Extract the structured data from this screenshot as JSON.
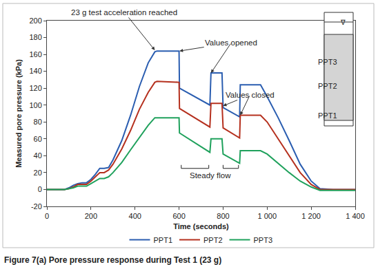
{
  "chart_data": {
    "type": "line",
    "title": "Figure 7(a) Pore pressure response during Test 1 (23 g)",
    "x_label": "Time (seconds)",
    "y_label": "Measured pore pressure (kPa)",
    "x": [
      0,
      80,
      100,
      120,
      140,
      160,
      180,
      200,
      220,
      240,
      260,
      280,
      300,
      340,
      380,
      420,
      460,
      490,
      500,
      600,
      602,
      740,
      745,
      795,
      800,
      875,
      878,
      970,
      1000,
      1050,
      1100,
      1150,
      1200,
      1240,
      1300,
      1400
    ],
    "series": [
      {
        "name": "PPT1",
        "color": "#2a5db0",
        "values": [
          0,
          0,
          2,
          5,
          7,
          8,
          8,
          12,
          18,
          25,
          25,
          26,
          35,
          58,
          88,
          122,
          150,
          163,
          164,
          164,
          120,
          100,
          138,
          138,
          97,
          86,
          124,
          124,
          110,
          85,
          58,
          30,
          10,
          1,
          0,
          0
        ]
      },
      {
        "name": "PPT2",
        "color": "#b5301e",
        "values": [
          0,
          0,
          1,
          3,
          6,
          6,
          6,
          10,
          15,
          20,
          20,
          23,
          30,
          48,
          70,
          95,
          115,
          127,
          128,
          127,
          96,
          74,
          102,
          102,
          73,
          61,
          88,
          88,
          80,
          60,
          40,
          20,
          6,
          0,
          0,
          0
        ]
      },
      {
        "name": "PPT3",
        "color": "#1fa15c",
        "values": [
          0,
          0,
          1,
          2,
          4,
          4,
          4,
          7,
          10,
          13,
          13,
          15,
          20,
          32,
          47,
          62,
          76,
          85,
          85,
          85,
          67,
          44,
          60,
          60,
          42,
          31,
          46,
          46,
          42,
          31,
          20,
          10,
          3,
          -1,
          -1,
          -1
        ]
      }
    ],
    "xlim": [
      0,
      1400
    ],
    "xticks": [
      0,
      200,
      400,
      600,
      800,
      {
        "value": 1000,
        "label": "1 000"
      },
      {
        "value": 1200,
        "label": "1 200"
      },
      {
        "value": 1400,
        "label": "1 400"
      }
    ],
    "ylim": [
      -20,
      200
    ],
    "yticks": [
      -20,
      0,
      20,
      40,
      60,
      80,
      100,
      120,
      140,
      160,
      180,
      200
    ],
    "grid": false,
    "legend": "bottom",
    "annotations": [
      {
        "text": "23 g test acceleration reached",
        "points": [
          [
            490,
            165
          ]
        ]
      },
      {
        "text": "Values opened",
        "points": [
          [
            602,
            164
          ],
          [
            745,
            138
          ]
        ]
      },
      {
        "text": "Values closed",
        "points": [
          [
            800,
            99
          ],
          [
            878,
            88
          ]
        ]
      },
      {
        "text": "Steady flow",
        "x": 742,
        "y": 17,
        "spans": [
          [
            610,
            735
          ],
          [
            800,
            870
          ]
        ],
        "span_y": 25
      }
    ],
    "inset": {
      "symbol": "∇",
      "labels": [
        "PPT3",
        "PPT2",
        "PPT1"
      ]
    }
  }
}
